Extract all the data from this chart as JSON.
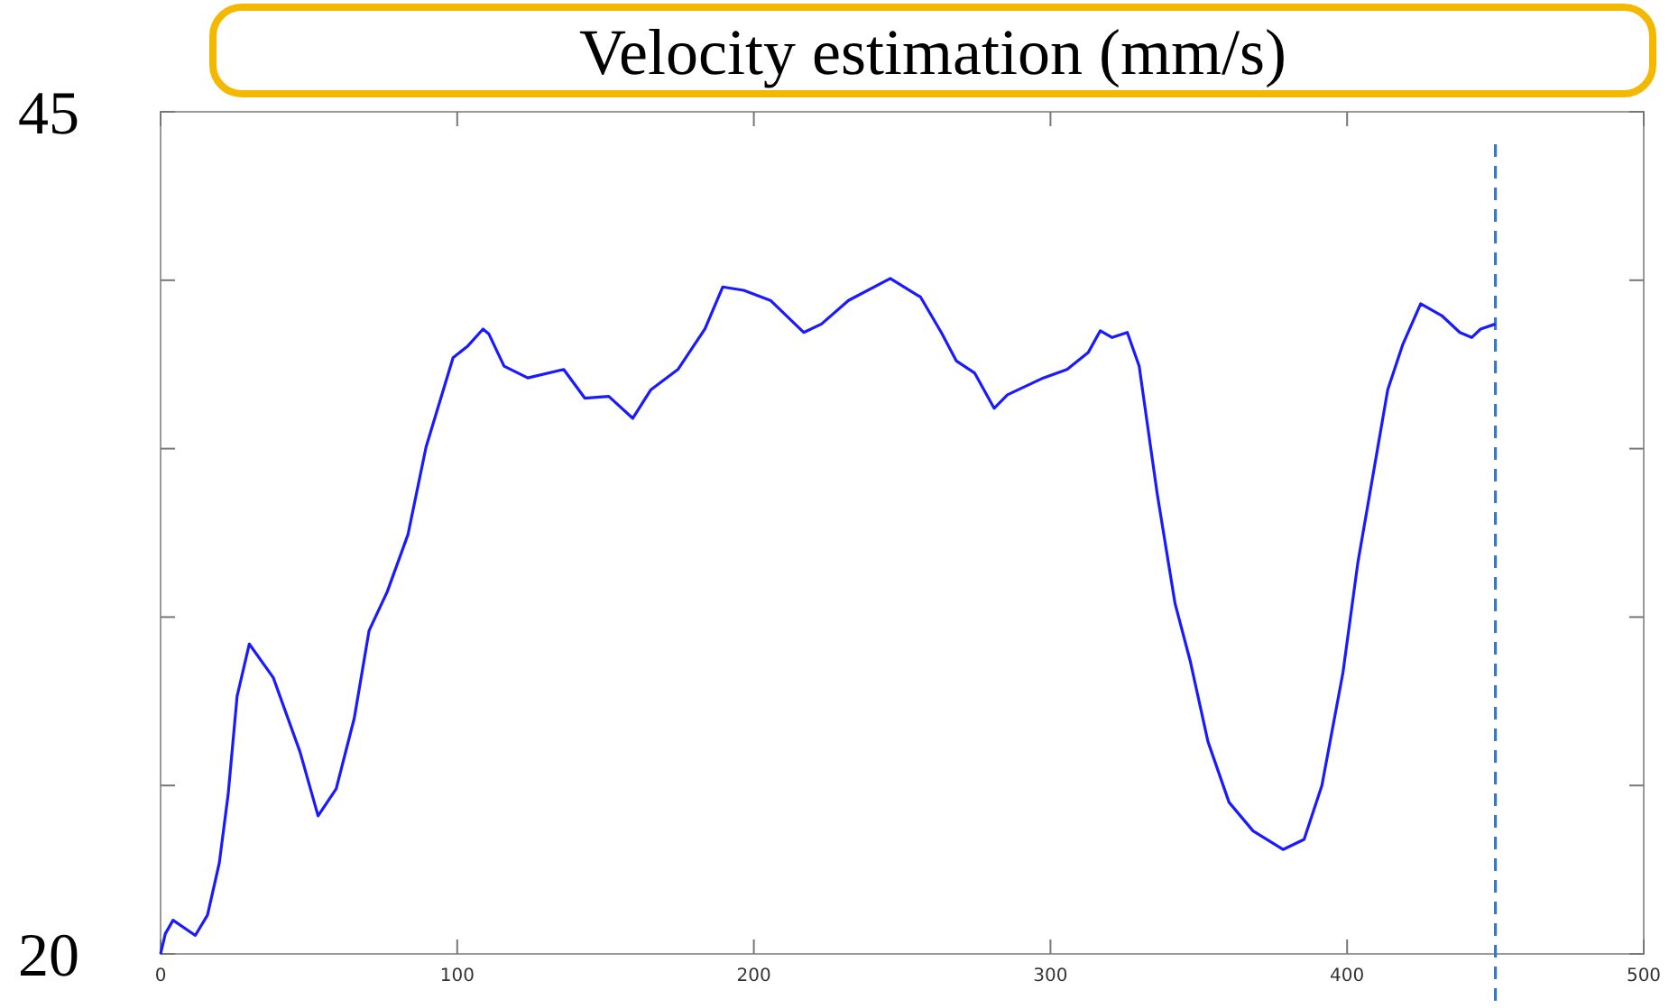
{
  "chart_data": {
    "type": "line",
    "title": "Velocity estimation (mm/s)",
    "xlim": [
      0,
      500
    ],
    "xticks": [
      0,
      100,
      200,
      300,
      400,
      500
    ],
    "ylim": [
      20,
      45
    ],
    "yticks": [
      20,
      {
        "value": 25,
        "label": null
      },
      {
        "value": 30,
        "label": null
      },
      {
        "value": 35,
        "label": null
      },
      {
        "value": 40,
        "label": null
      },
      45
    ],
    "series": [
      {
        "color": "#1a1aff",
        "x": [
          0,
          1.6,
          4.2,
          11.7,
          15.8,
          19.8,
          22.8,
          25.8,
          29.9,
          38,
          47,
          53.1,
          59.2,
          65.3,
          70.3,
          76.4,
          83.4,
          89.5,
          98.6,
          103.6,
          108.7,
          110.7,
          115.8,
          123.8,
          135.9,
          143,
          151.1,
          159.2,
          165.3,
          174.4,
          183.5,
          189.5,
          196.6,
          205.6,
          216.8,
          222.8,
          231.9,
          246,
          256.2,
          263.2,
          268.3,
          274.4,
          281,
          285.5,
          297.6,
          305.6,
          312.7,
          316.8,
          320.8,
          325.9,
          329.9,
          336,
          342,
          347.1,
          353.1,
          360.2,
          368.3,
          378.4,
          385.5,
          391.5,
          398.6,
          403.6,
          408.7,
          413.7,
          418.8,
          424.8,
          431.9,
          438,
          442,
          445,
          450
        ],
        "values": [
          20,
          20.6,
          21,
          20.55,
          21.15,
          22.7,
          24.75,
          27.65,
          29.2,
          28.2,
          26,
          24.1,
          24.9,
          27,
          29.6,
          30.75,
          32.45,
          35.05,
          37.7,
          38.05,
          38.55,
          38.4,
          37.45,
          37.1,
          37.35,
          36.5,
          36.55,
          35.9,
          36.75,
          37.35,
          38.55,
          39.8,
          39.7,
          39.4,
          38.45,
          38.7,
          39.4,
          40.05,
          39.5,
          38.45,
          37.6,
          37.25,
          36.2,
          36.6,
          37.1,
          37.35,
          37.85,
          38.5,
          38.3,
          38.45,
          37.45,
          33.65,
          30.4,
          28.7,
          26.3,
          24.5,
          23.65,
          23.1,
          23.4,
          25,
          28.35,
          31.6,
          34.2,
          36.75,
          38.1,
          39.3,
          38.95,
          38.45,
          38.3,
          38.55,
          38.7
        ]
      }
    ],
    "ref_lines": [
      {
        "axis": "x",
        "value": 450,
        "color": "#3a78c0",
        "line_style": "dashed"
      }
    ]
  }
}
